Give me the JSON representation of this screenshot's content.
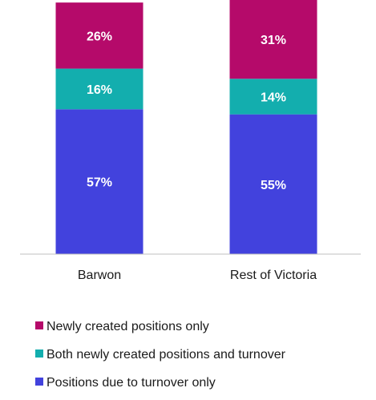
{
  "chart_data": {
    "type": "bar",
    "stacked": true,
    "categories": [
      "Barwon",
      "Rest of Victoria"
    ],
    "series": [
      {
        "name": "Positions due to turnover only",
        "values": [
          57,
          55
        ],
        "labels": [
          "57%",
          "55%"
        ],
        "color": "#4242DD"
      },
      {
        "name": "Both newly created positions and turnover",
        "values": [
          16,
          14
        ],
        "labels": [
          "16%",
          "14%"
        ],
        "color": "#13AEAE"
      },
      {
        "name": "Newly created positions only",
        "values": [
          26,
          31
        ],
        "labels": [
          "26%",
          "31%"
        ],
        "color": "#B50A6A"
      }
    ],
    "legend_order": [
      2,
      1,
      0
    ],
    "legend_position": "bottom",
    "ylim": [
      0,
      100
    ],
    "grid": false,
    "y_axis_visible": false
  }
}
